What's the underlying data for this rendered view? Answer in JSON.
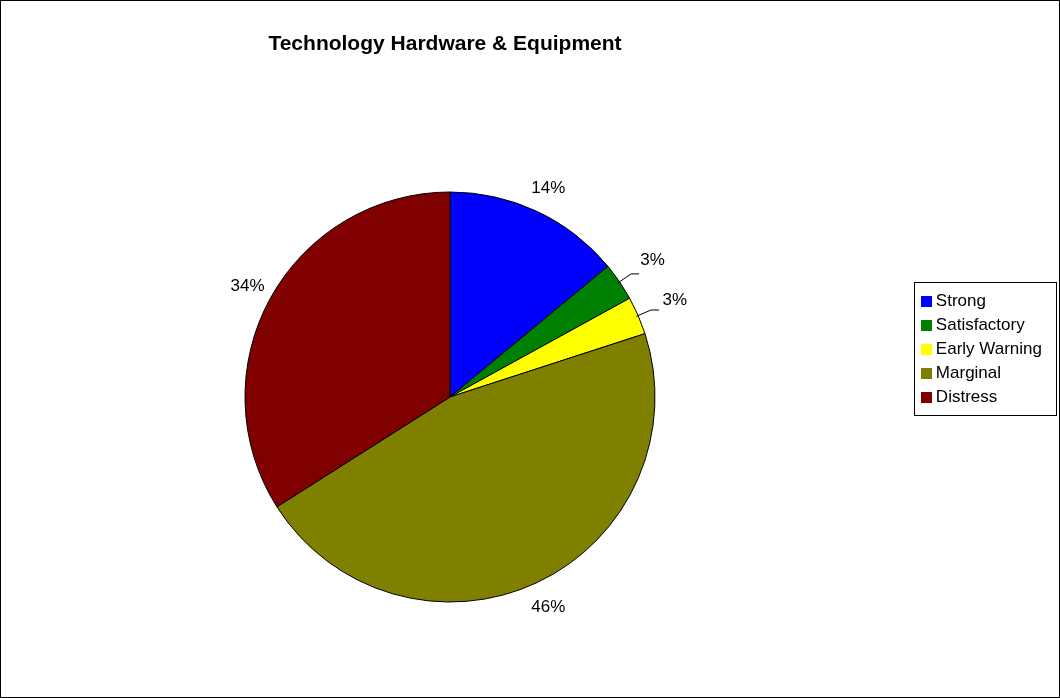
{
  "chart_data": {
    "type": "pie",
    "title": "Technology Hardware & Equipment",
    "categories": [
      "Strong",
      "Satisfactory",
      "Early Warning",
      "Marginal",
      "Distress"
    ],
    "values": [
      14,
      3,
      3,
      46,
      34
    ],
    "colors": [
      "#0000ff",
      "#008000",
      "#ffff00",
      "#808000",
      "#800000"
    ],
    "value_labels": [
      "14%",
      "3%",
      "3%",
      "46%",
      "34%"
    ],
    "legend": "right"
  }
}
